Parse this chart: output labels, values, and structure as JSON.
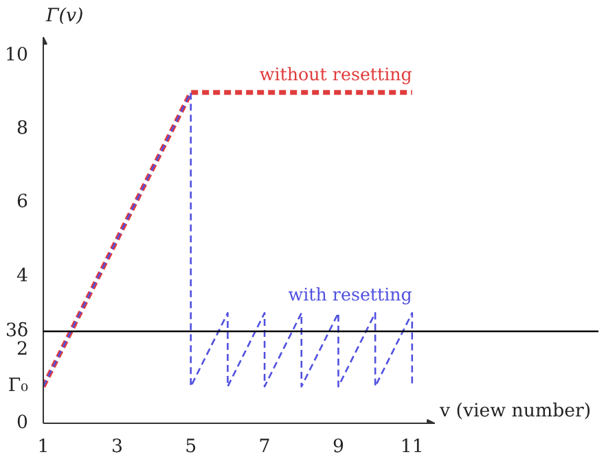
{
  "chart_data": {
    "type": "line",
    "xlabel": "v (view number)",
    "ylabel": "Γ(v)",
    "x": [
      1,
      5,
      11
    ],
    "xlim": [
      1,
      11.6
    ],
    "ylim": [
      0,
      10.5
    ],
    "xticks": [
      1,
      3,
      5,
      7,
      9,
      11
    ],
    "yticks": [
      0,
      {
        "value": 1,
        "label": "Γ₀"
      },
      2,
      {
        "value": 2.5,
        "label": "3δ"
      },
      4,
      6,
      8,
      10
    ],
    "line_style": "dashed",
    "grid": false,
    "series": [
      {
        "name": "without resetting",
        "color": "#e03c3c",
        "values": [
          1,
          9,
          9
        ]
      },
      {
        "name": "with resetting",
        "color": "#5050e0",
        "x": [
          1,
          5,
          5,
          6,
          6,
          7,
          7,
          8,
          8,
          9,
          9,
          10,
          10,
          11,
          11
        ],
        "values": [
          1,
          9,
          1,
          3,
          1,
          3,
          1,
          3,
          1,
          3,
          1,
          3,
          1,
          3,
          1
        ]
      }
    ],
    "ref_lines": [
      {
        "axis": "y",
        "value": 2.5,
        "color": "#000000",
        "line_style": "solid"
      }
    ]
  }
}
